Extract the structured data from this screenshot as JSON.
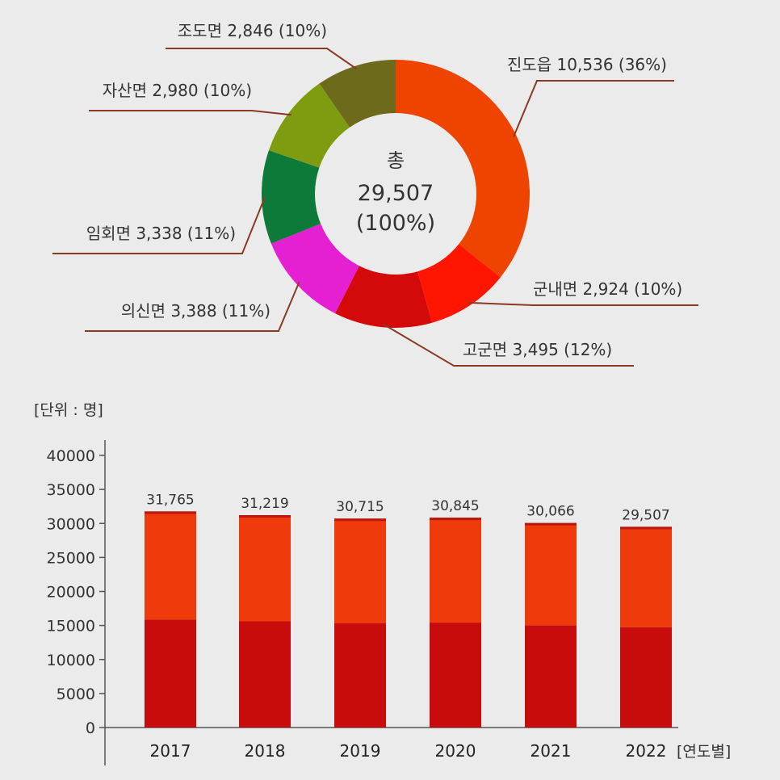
{
  "chart_data": [
    {
      "type": "pie",
      "center_label": {
        "line1": "총",
        "line2": "29,507",
        "line3": "(100%)"
      },
      "slices": [
        {
          "label": "진도읍 10,536 (36%)",
          "name": "진도읍",
          "value": 10536,
          "percent": 36,
          "color": "#ee4400"
        },
        {
          "label": "군내면 2,924 (10%)",
          "name": "군내면",
          "value": 2924,
          "percent": 10,
          "color": "#ff1500"
        },
        {
          "label": "고군면 3,495 (12%)",
          "name": "고군면",
          "value": 3495,
          "percent": 12,
          "color": "#d40a0a"
        },
        {
          "label": "의신면 3,388 (11%)",
          "name": "의신면",
          "value": 3388,
          "percent": 11,
          "color": "#e51fd2"
        },
        {
          "label": "임회면 3,338 (11%)",
          "name": "임회면",
          "value": 3338,
          "percent": 11,
          "color": "#0d7a3a"
        },
        {
          "label": "자산면 2,980 (10%)",
          "name": "자산면",
          "value": 2980,
          "percent": 10,
          "color": "#7f9c10"
        },
        {
          "label": "조도면 2,846 (10%)",
          "name": "조도면",
          "value": 2846,
          "percent": 10,
          "color": "#6d6a1c"
        }
      ]
    },
    {
      "type": "bar",
      "unit_label": "[단위 : 명]",
      "x_axis_label": "[연도별]",
      "categories": [
        "2017",
        "2018",
        "2019",
        "2020",
        "2021",
        "2022"
      ],
      "values": [
        31765,
        31219,
        30715,
        30845,
        30066,
        29507
      ],
      "value_labels": [
        "31,765",
        "31,219",
        "30,715",
        "30,845",
        "30,066",
        "29,507"
      ],
      "ylim": [
        0,
        40000
      ],
      "yticks": [
        "0",
        "5000",
        "10000",
        "15000",
        "20000",
        "25000",
        "30000",
        "35000",
        "40000"
      ],
      "colors": {
        "lower": "#c80c0c",
        "upper": "#ef3a0c",
        "top": "#b81810"
      }
    }
  ]
}
